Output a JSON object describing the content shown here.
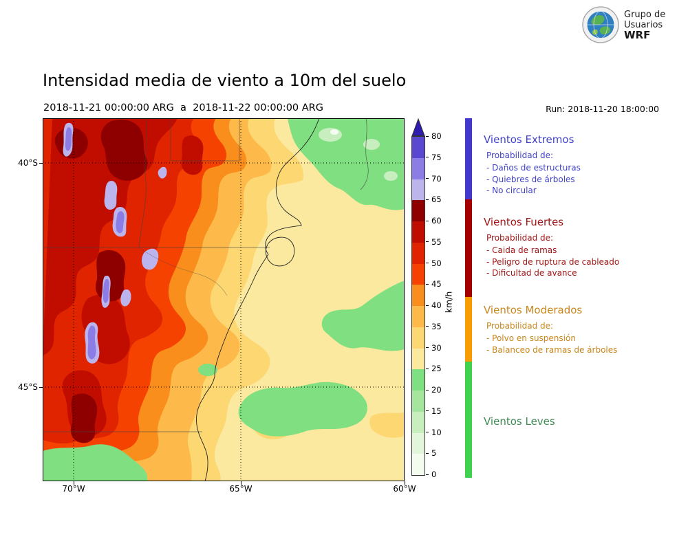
{
  "header": {
    "title": "Intensidad media de viento a 10m del suelo",
    "subtitle": "2018-11-21 00:00:00 ARG  a  2018-11-22 00:00:00 ARG",
    "run_label": "Run: 2018-11-20 18:00:00",
    "logo": {
      "line1": "Grupo de",
      "line2": "Usuarios",
      "line3": "WRF"
    }
  },
  "map": {
    "x_tick_labels": [
      "70°W",
      "65°W",
      "60°W"
    ],
    "y_tick_labels": [
      "40°S",
      "45°S"
    ]
  },
  "colorbar": {
    "unit": "km/h",
    "tick_values": [
      0,
      5,
      10,
      15,
      20,
      25,
      30,
      35,
      40,
      45,
      50,
      55,
      60,
      65,
      70,
      75,
      80
    ],
    "over_color": "#2d1cae",
    "segments": [
      {
        "from": 0,
        "to": 5,
        "color": "#f4fbef"
      },
      {
        "from": 5,
        "to": 10,
        "color": "#e3f6da"
      },
      {
        "from": 10,
        "to": 15,
        "color": "#c8eec0"
      },
      {
        "from": 15,
        "to": 20,
        "color": "#a5e69e"
      },
      {
        "from": 20,
        "to": 25,
        "color": "#80df80"
      },
      {
        "from": 25,
        "to": 30,
        "color": "#fbe9a0"
      },
      {
        "from": 30,
        "to": 35,
        "color": "#fcd772"
      },
      {
        "from": 35,
        "to": 40,
        "color": "#fdba4a"
      },
      {
        "from": 40,
        "to": 45,
        "color": "#fa8e1c"
      },
      {
        "from": 45,
        "to": 50,
        "color": "#f64200"
      },
      {
        "from": 50,
        "to": 55,
        "color": "#e02400"
      },
      {
        "from": 55,
        "to": 60,
        "color": "#c10d00"
      },
      {
        "from": 60,
        "to": 65,
        "color": "#8e0000"
      },
      {
        "from": 65,
        "to": 70,
        "color": "#bcb4ec"
      },
      {
        "from": 70,
        "to": 75,
        "color": "#8c7de6"
      },
      {
        "from": 75,
        "to": 80,
        "color": "#5a48d0"
      }
    ]
  },
  "legend": {
    "strip_colors": [
      "#4338cb",
      "#a40000",
      "#f89c00",
      "#3fd24f"
    ],
    "sections": [
      {
        "title": "Vientos Extremos",
        "color": "#4242c8",
        "prob": "Probabilidad de:",
        "items": [
          "- Daños de estructuras",
          "- Quiebres de árboles",
          "- No circular"
        ]
      },
      {
        "title": "Vientos Fuertes",
        "color": "#a01616",
        "prob": "Probabilidad de:",
        "items": [
          "- Caida de ramas",
          "- Peligro de ruptura de cableado",
          "- Dificultad de avance"
        ]
      },
      {
        "title": "Vientos Moderados",
        "color": "#c9861c",
        "prob": "Probabilidad de:",
        "items": [
          "- Polvo en suspensión",
          "- Balanceo de ramas de árboles"
        ]
      },
      {
        "title": "Vientos Leves",
        "color": "#3e8b55",
        "prob": "",
        "items": []
      }
    ]
  }
}
